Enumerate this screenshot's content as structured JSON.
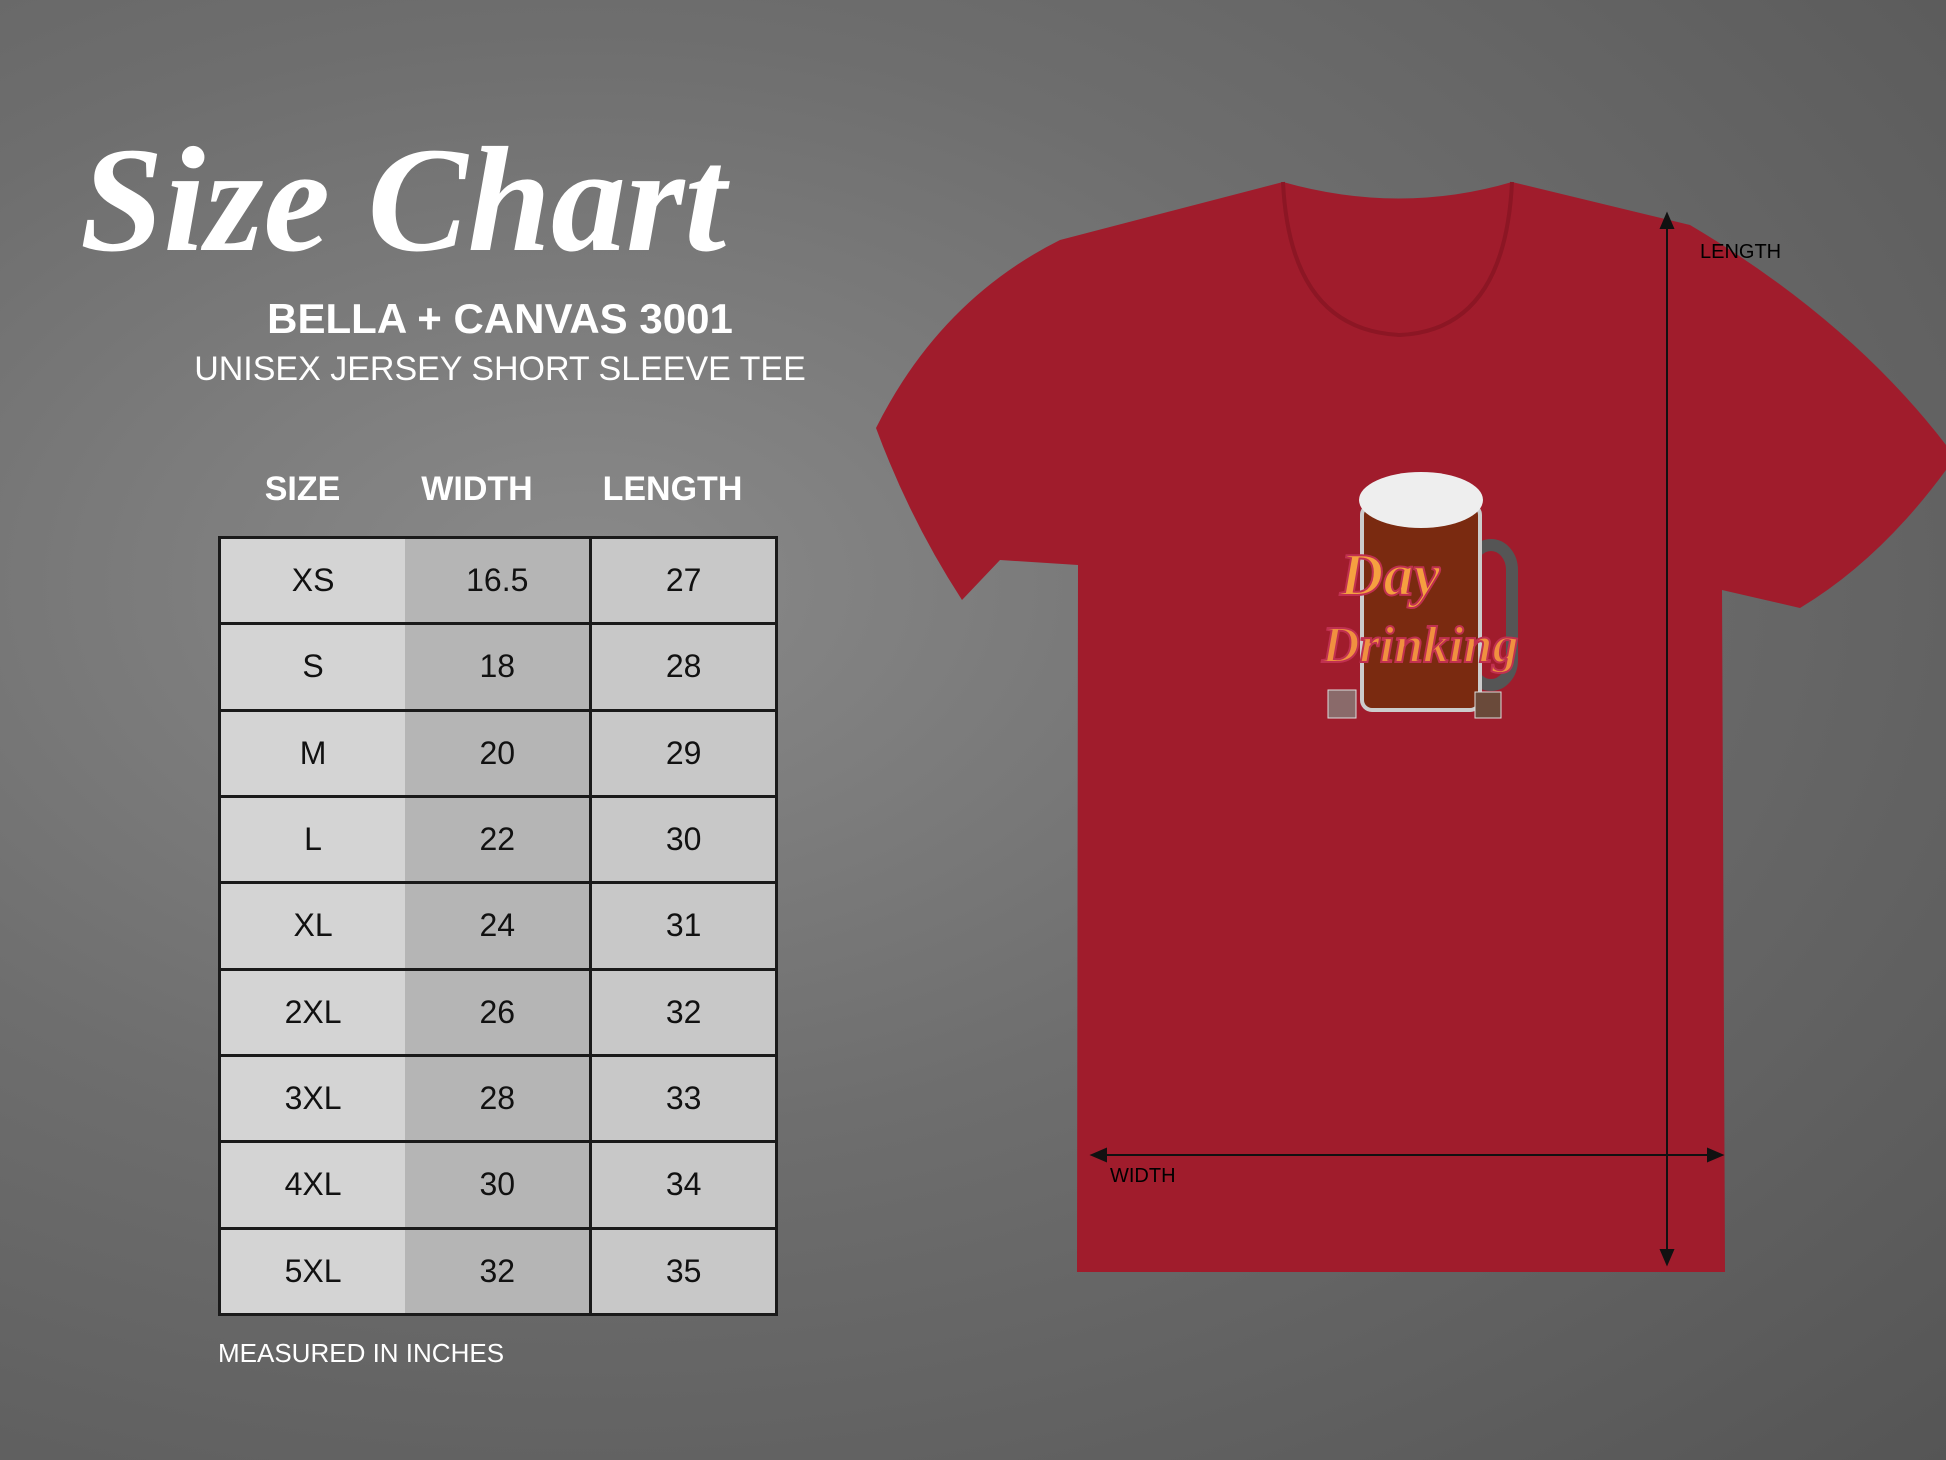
{
  "title": "Size Chart",
  "brand": "BELLA + CANVAS 3001",
  "subtitle": "UNISEX JERSEY SHORT SLEEVE TEE",
  "table": {
    "headers": [
      "SIZE",
      "WIDTH",
      "LENGTH"
    ],
    "rows": [
      [
        "XS",
        "16.5",
        "27"
      ],
      [
        "S",
        "18",
        "28"
      ],
      [
        "M",
        "20",
        "29"
      ],
      [
        "L",
        "22",
        "30"
      ],
      [
        "XL",
        "24",
        "31"
      ],
      [
        "2XL",
        "26",
        "32"
      ],
      [
        "3XL",
        "28",
        "33"
      ],
      [
        "4XL",
        "30",
        "34"
      ],
      [
        "5XL",
        "32",
        "35"
      ]
    ]
  },
  "note": "MEASURED IN INCHES",
  "shirt": {
    "color": "#a01c2c",
    "graphic_text": "Day Drinking",
    "length_label": "LENGTH",
    "width_label": "WIDTH"
  }
}
